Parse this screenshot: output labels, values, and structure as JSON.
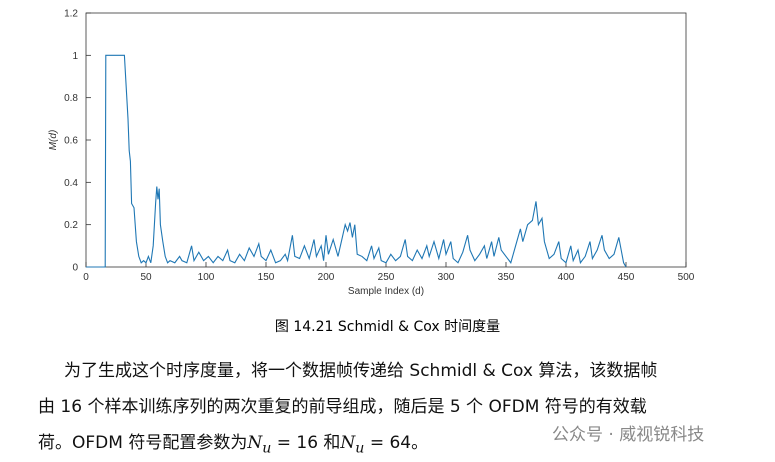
{
  "chart_data": {
    "type": "line",
    "xlabel": "Sample Index (d)",
    "ylabel": "M(d)",
    "xlim": [
      0,
      500
    ],
    "ylim": [
      0,
      1.2
    ],
    "xticks": [
      0,
      50,
      100,
      150,
      200,
      250,
      300,
      350,
      400,
      450,
      500
    ],
    "yticks": [
      0,
      0.2,
      0.4,
      0.6,
      0.8,
      1,
      1.2
    ],
    "series": [
      {
        "color": "#1f77b4",
        "x": [
          0,
          16,
          16.5,
          32,
          34,
          35,
          36,
          37,
          38,
          40,
          42,
          44,
          46,
          48,
          50,
          52,
          54,
          56,
          58,
          59,
          60,
          61,
          62,
          64,
          66,
          68,
          70,
          74,
          78,
          80,
          84,
          88,
          90,
          94,
          98,
          102,
          106,
          110,
          114,
          118,
          120,
          124,
          128,
          132,
          136,
          140,
          144,
          146,
          150,
          154,
          158,
          162,
          166,
          168,
          172,
          174,
          178,
          182,
          186,
          190,
          192,
          196,
          198,
          200,
          202,
          206,
          210,
          214,
          216,
          218,
          220,
          222,
          224,
          226,
          230,
          234,
          238,
          240,
          244,
          246,
          250,
          254,
          258,
          262,
          266,
          268,
          272,
          276,
          280,
          284,
          286,
          290,
          294,
          298,
          300,
          304,
          306,
          310,
          314,
          318,
          320,
          324,
          328,
          332,
          334,
          338,
          340,
          344,
          346,
          350,
          354,
          358,
          362,
          364,
          368,
          372,
          375,
          377,
          380,
          382,
          386,
          390,
          394,
          396,
          400,
          404,
          406,
          410,
          412,
          416,
          420,
          422,
          426,
          430,
          432,
          436,
          440,
          444,
          446,
          448,
          450
        ],
        "values": [
          0,
          0,
          1,
          1,
          0.8,
          0.7,
          0.55,
          0.5,
          0.3,
          0.28,
          0.12,
          0.05,
          0.02,
          0.03,
          0.02,
          0.05,
          0.02,
          0.1,
          0.3,
          0.38,
          0.32,
          0.37,
          0.2,
          0.12,
          0.05,
          0.02,
          0.03,
          0.02,
          0.05,
          0.03,
          0.02,
          0.1,
          0.03,
          0.07,
          0.03,
          0.05,
          0.02,
          0.05,
          0.03,
          0.08,
          0.03,
          0.02,
          0.06,
          0.03,
          0.09,
          0.05,
          0.11,
          0.05,
          0.03,
          0.08,
          0.02,
          0.03,
          0.06,
          0.03,
          0.15,
          0.05,
          0.04,
          0.1,
          0.04,
          0.13,
          0.05,
          0.1,
          0.03,
          0.15,
          0.06,
          0.13,
          0.05,
          0.15,
          0.2,
          0.17,
          0.21,
          0.14,
          0.2,
          0.06,
          0.05,
          0.03,
          0.1,
          0.04,
          0.09,
          0.03,
          0.02,
          0.06,
          0.03,
          0.05,
          0.13,
          0.05,
          0.03,
          0.08,
          0.04,
          0.1,
          0.05,
          0.12,
          0.04,
          0.13,
          0.06,
          0.12,
          0.04,
          0.02,
          0.07,
          0.15,
          0.08,
          0.03,
          0.06,
          0.1,
          0.04,
          0.12,
          0.05,
          0.14,
          0.08,
          0.05,
          0.02,
          0.1,
          0.18,
          0.12,
          0.2,
          0.22,
          0.31,
          0.2,
          0.23,
          0.12,
          0.04,
          0.06,
          0.12,
          0.04,
          0.02,
          0.1,
          0.03,
          0.08,
          0.02,
          0.05,
          0.12,
          0.04,
          0.08,
          0.15,
          0.08,
          0.04,
          0.06,
          0.14,
          0.08,
          0.02,
          0
        ]
      }
    ]
  },
  "caption": "图  14.21 Schmidl & Cox 时间度量",
  "paragraph": {
    "line1": "为了生成这个时序度量，将一个数据帧传递给 Schmidl & Cox 算法，该数据帧",
    "line2": "由 16 个样本训练序列的两次重复的前导组成，随后是 5 个 OFDM 符号的有效载",
    "line3_start": "荷。OFDM 符号配置参数为",
    "symbol": "N",
    "subscript": "u",
    "eq1": " = 16 和",
    "eq2": " = 64。"
  },
  "watermark": "公众号 · 威视锐科技"
}
